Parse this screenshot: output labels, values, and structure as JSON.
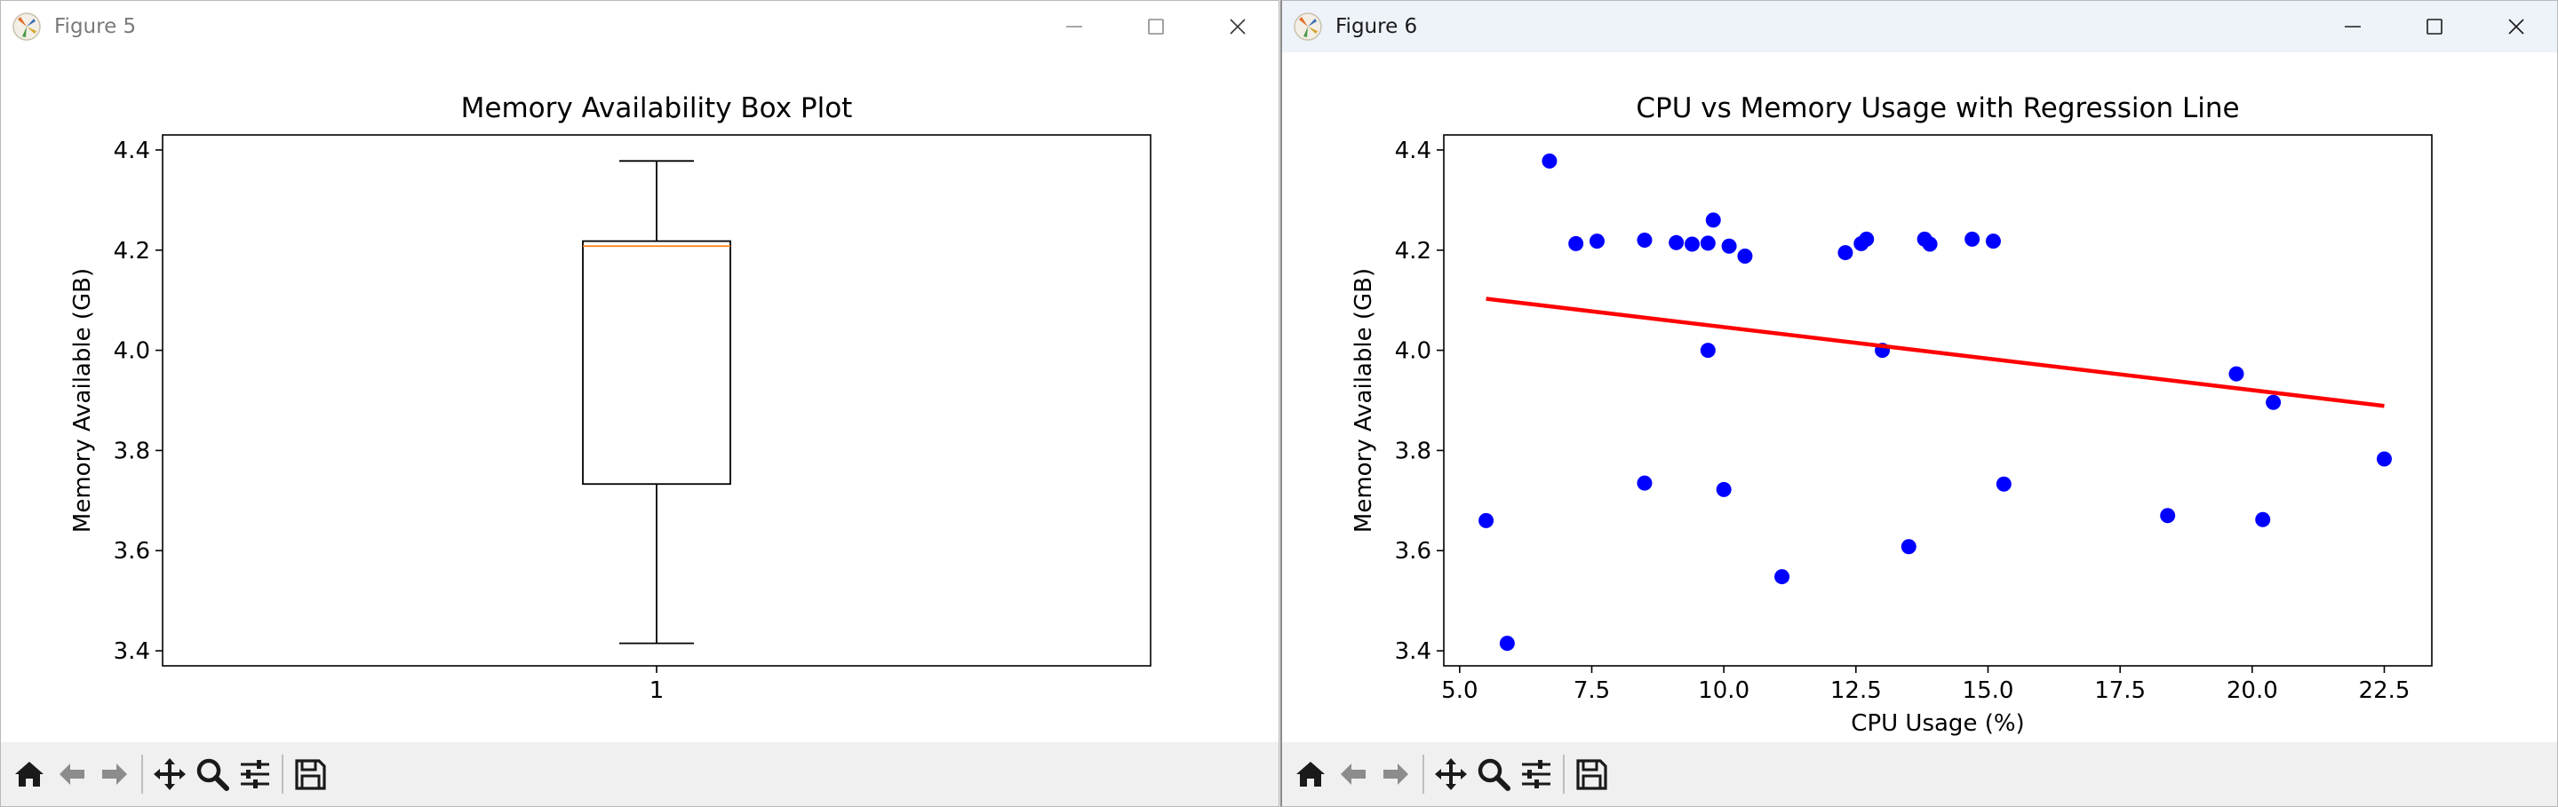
{
  "windows": [
    {
      "title": "Figure 5",
      "toolbar": [
        "home-icon",
        "back-arrow-icon",
        "forward-arrow-icon",
        "pan-icon",
        "zoom-icon",
        "configure-subplots-icon",
        "save-icon"
      ]
    },
    {
      "title": "Figure 6",
      "toolbar": [
        "home-icon",
        "back-arrow-icon",
        "forward-arrow-icon",
        "pan-icon",
        "zoom-icon",
        "configure-subplots-icon",
        "save-icon"
      ]
    }
  ],
  "chart_data": [
    {
      "type": "box",
      "title": "Memory Availability Box Plot",
      "xlabel": "",
      "ylabel": "Memory Available (GB)",
      "categories": [
        "1"
      ],
      "ylim": [
        3.37,
        4.43
      ],
      "yticks": [
        "3.4",
        "3.6",
        "3.8",
        "4.0",
        "4.2",
        "4.4"
      ],
      "ytick_values": [
        3.4,
        3.6,
        3.8,
        4.0,
        4.2,
        4.4
      ],
      "box": {
        "whisker_low": 3.415,
        "q1": 3.733,
        "median": 4.208,
        "q3": 4.218,
        "whisker_high": 4.378
      },
      "colors": {
        "median": "#ff7f0e",
        "box": "#000000"
      },
      "grid": false
    },
    {
      "type": "scatter",
      "title": "CPU vs Memory Usage with Regression Line",
      "xlabel": "CPU Usage (%)",
      "ylabel": "Memory Available (GB)",
      "xlim": [
        4.7,
        23.4
      ],
      "ylim": [
        3.37,
        4.43
      ],
      "xticks": [
        "5.0",
        "7.5",
        "10.0",
        "12.5",
        "15.0",
        "17.5",
        "20.0",
        "22.5"
      ],
      "xtick_values": [
        5.0,
        7.5,
        10.0,
        12.5,
        15.0,
        17.5,
        20.0,
        22.5
      ],
      "yticks": [
        "3.4",
        "3.6",
        "3.8",
        "4.0",
        "4.2",
        "4.4"
      ],
      "ytick_values": [
        3.4,
        3.6,
        3.8,
        4.0,
        4.2,
        4.4
      ],
      "points": [
        [
          5.5,
          3.66
        ],
        [
          5.9,
          3.415
        ],
        [
          6.7,
          4.378
        ],
        [
          7.2,
          4.213
        ],
        [
          7.6,
          4.218
        ],
        [
          8.5,
          4.22
        ],
        [
          8.5,
          3.735
        ],
        [
          9.1,
          4.215
        ],
        [
          9.4,
          4.212
        ],
        [
          9.7,
          4.214
        ],
        [
          9.7,
          4.0
        ],
        [
          9.8,
          4.26
        ],
        [
          10.0,
          3.722
        ],
        [
          10.1,
          4.208
        ],
        [
          10.4,
          4.188
        ],
        [
          11.1,
          3.548
        ],
        [
          12.3,
          4.195
        ],
        [
          12.6,
          4.213
        ],
        [
          12.7,
          4.222
        ],
        [
          13.0,
          4.0
        ],
        [
          13.5,
          3.608
        ],
        [
          13.8,
          4.222
        ],
        [
          13.9,
          4.212
        ],
        [
          14.7,
          4.222
        ],
        [
          15.1,
          4.218
        ],
        [
          15.3,
          3.733
        ],
        [
          18.4,
          3.67
        ],
        [
          19.7,
          3.953
        ],
        [
          20.2,
          3.662
        ],
        [
          20.4,
          3.896
        ],
        [
          22.5,
          3.783
        ]
      ],
      "regression": {
        "x": [
          5.5,
          22.5
        ],
        "y": [
          4.103,
          3.889
        ]
      },
      "colors": {
        "points": "#0000ff",
        "line": "#ff0000"
      },
      "grid": false
    }
  ]
}
